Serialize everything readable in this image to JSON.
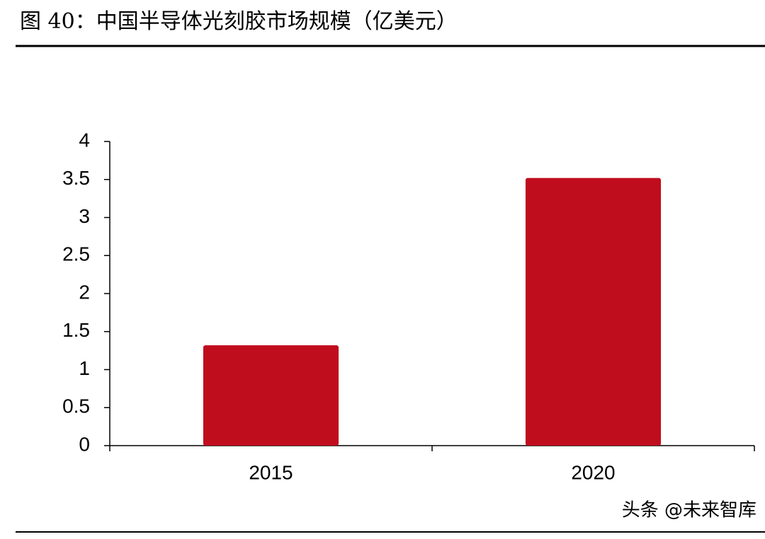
{
  "chart_data": {
    "type": "bar",
    "title": "图 40：中国半导体光刻胶市场规模（亿美元）",
    "categories": [
      "2015",
      "2020"
    ],
    "values": [
      1.32,
      3.52
    ],
    "color": "#c00d1e",
    "ylim": [
      0,
      4
    ],
    "yticks": [
      0,
      0.5,
      1,
      1.5,
      2,
      2.5,
      3,
      3.5,
      4
    ],
    "watermark": "头条 @未来智库"
  }
}
